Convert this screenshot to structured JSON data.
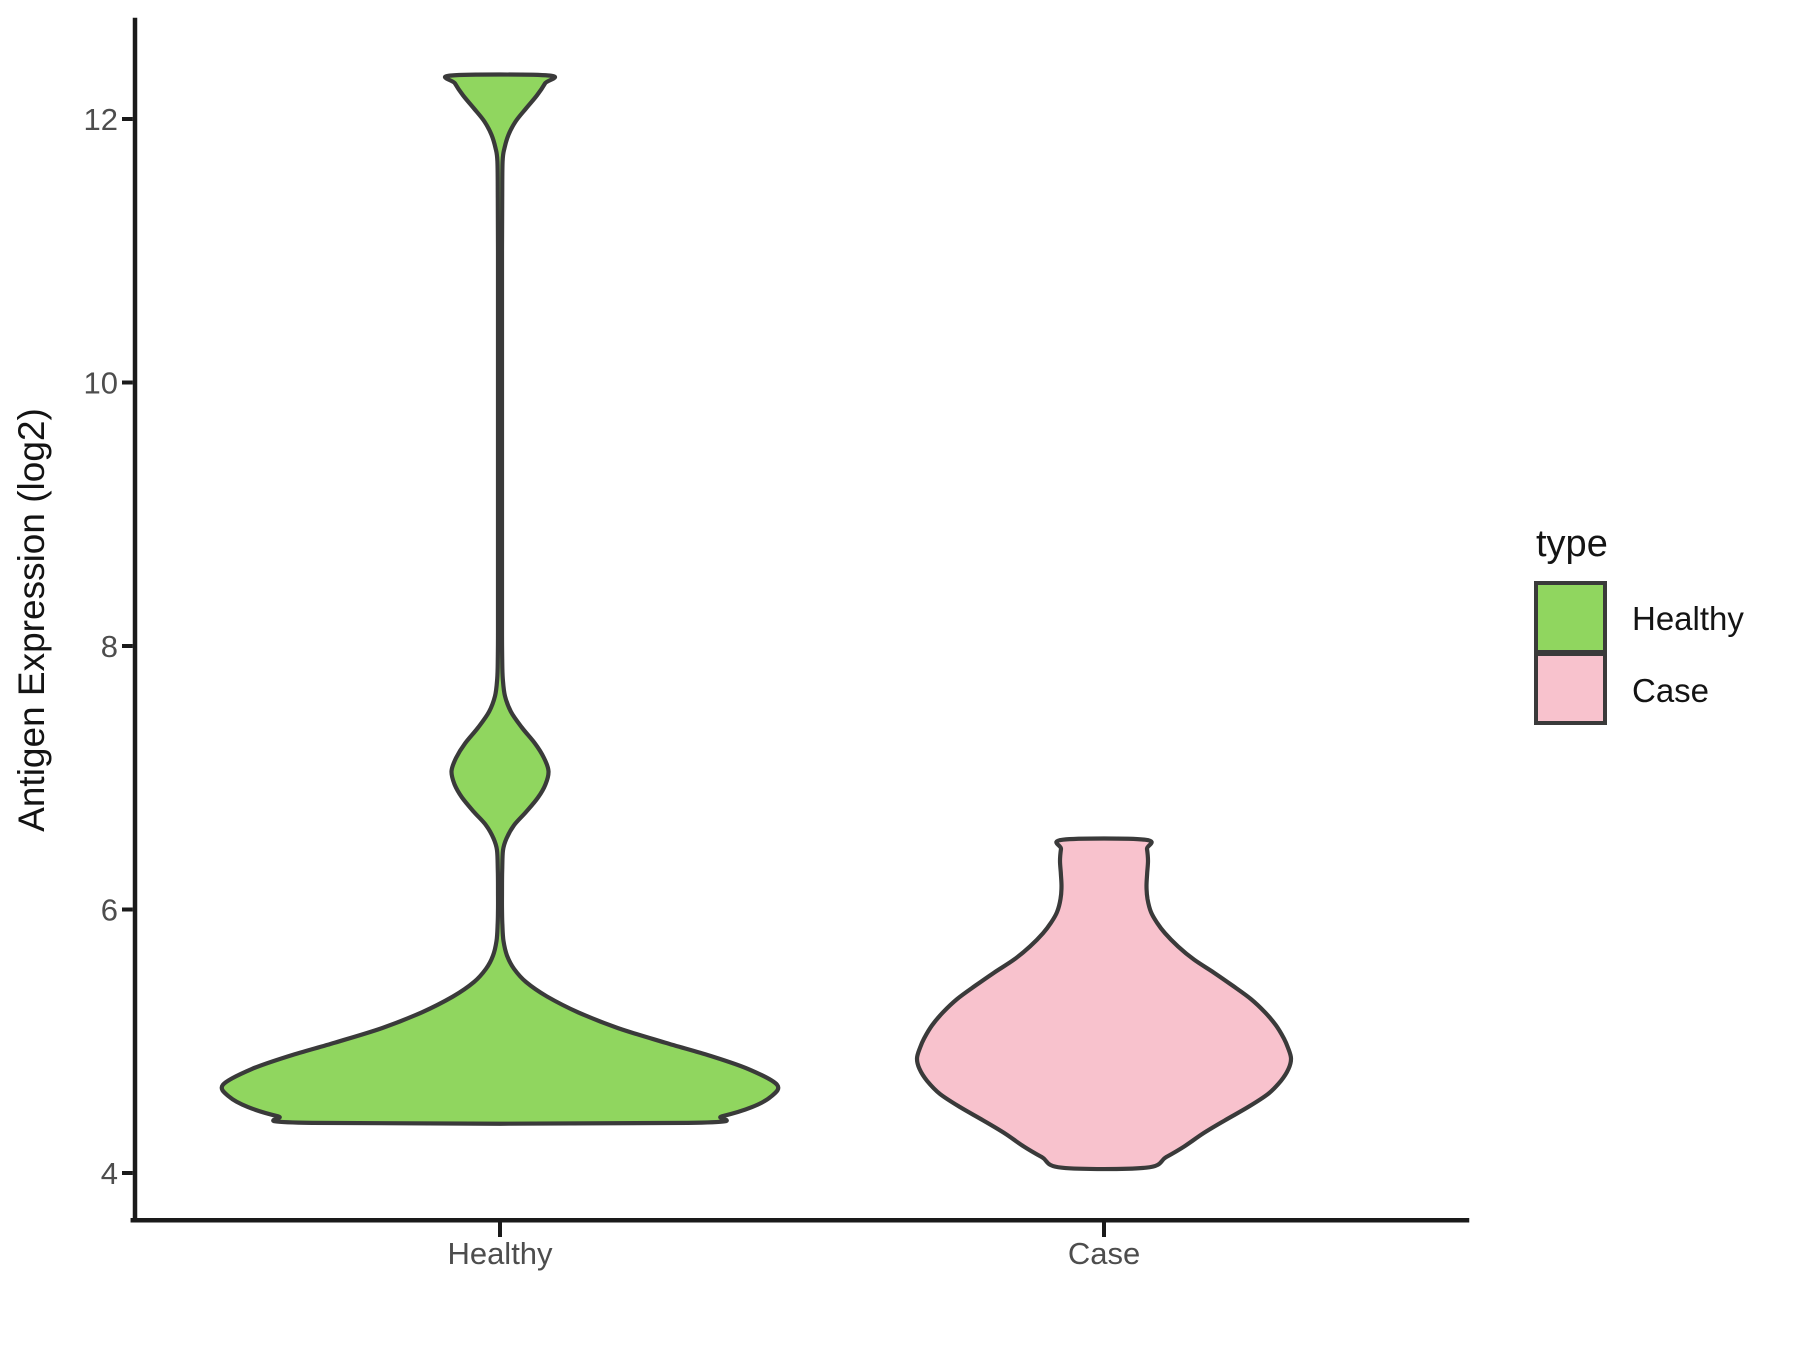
{
  "chart_data": {
    "type": "violin",
    "title": "",
    "xlabel": "",
    "ylabel": "Antigen Expression (log2)",
    "categories": [
      "Healthy",
      "Case"
    ],
    "y_axis": {
      "ticks": [
        "12",
        "10",
        "8",
        "6",
        "4"
      ],
      "tick_values": [
        12,
        10,
        8,
        6,
        4
      ],
      "range_shown": [
        3.6,
        12.75
      ],
      "grid": "off"
    },
    "x_axis": {
      "tick_labels": [
        "Healthy",
        "Case"
      ]
    },
    "legend": {
      "title": "type",
      "position": "right",
      "entries": [
        {
          "label": "Healthy",
          "color": "#90D65F"
        },
        {
          "label": "Case",
          "color": "#F8C2CD"
        }
      ]
    },
    "colors": {
      "outline": "#3A3A3A",
      "axis": "#1A1A1A",
      "tick_label": "#4D4D4D",
      "text": "#141414",
      "background": "#FFFFFF"
    },
    "series": [
      {
        "name": "Healthy",
        "fill": "#90D65F",
        "summary": {
          "bulk_range": [
            4.38,
            5.72
          ],
          "widest_at": 4.67,
          "mid_bulge_center": 7.05,
          "mid_bulge_range": [
            6.55,
            7.6
          ],
          "top_spike_range": [
            11.7,
            12.33
          ]
        },
        "outline_profile": [
          [
            12.33,
            48.5
          ],
          [
            12.27,
            45
          ],
          [
            12.18,
            37
          ],
          [
            12.08,
            26
          ],
          [
            11.98,
            15.5
          ],
          [
            11.88,
            8.5
          ],
          [
            11.78,
            4.5
          ],
          [
            11.68,
            2.6
          ],
          [
            11.4,
            2.2
          ],
          [
            11.0,
            2.0
          ],
          [
            10.5,
            2.0
          ],
          [
            10.0,
            2.0
          ],
          [
            9.5,
            2.0
          ],
          [
            9.0,
            2.0
          ],
          [
            8.5,
            2.0
          ],
          [
            8.1,
            2.0
          ],
          [
            7.9,
            2.2
          ],
          [
            7.75,
            2.8
          ],
          [
            7.62,
            5
          ],
          [
            7.5,
            11
          ],
          [
            7.38,
            22
          ],
          [
            7.26,
            35
          ],
          [
            7.15,
            44
          ],
          [
            7.05,
            48.5
          ],
          [
            6.95,
            45.5
          ],
          [
            6.85,
            38
          ],
          [
            6.74,
            26
          ],
          [
            6.64,
            14
          ],
          [
            6.54,
            6.5
          ],
          [
            6.45,
            3
          ],
          [
            6.3,
            2.2
          ],
          [
            6.15,
            2.0
          ],
          [
            6.0,
            2.0
          ],
          [
            5.88,
            2.4
          ],
          [
            5.76,
            3.5
          ],
          [
            5.65,
            7
          ],
          [
            5.55,
            14
          ],
          [
            5.45,
            26
          ],
          [
            5.34,
            47
          ],
          [
            5.22,
            78
          ],
          [
            5.1,
            118
          ],
          [
            4.99,
            165
          ],
          [
            4.89,
            210
          ],
          [
            4.79,
            248
          ],
          [
            4.67,
            277
          ],
          [
            4.58,
            271
          ],
          [
            4.5,
            252
          ],
          [
            4.43,
            222
          ],
          [
            4.38,
            188
          ]
        ]
      },
      {
        "name": "Case",
        "fill": "#F8C2CD",
        "summary": {
          "range": [
            4.04,
            6.53
          ],
          "widest_at": 4.87,
          "neck_waist_at": 6.2
        },
        "outline_profile": [
          [
            6.53,
            41
          ],
          [
            6.46,
            43
          ],
          [
            6.37,
            44
          ],
          [
            6.28,
            43.2
          ],
          [
            6.18,
            42.5
          ],
          [
            6.08,
            43.5
          ],
          [
            5.98,
            47
          ],
          [
            5.9,
            53
          ],
          [
            5.82,
            61
          ],
          [
            5.72,
            74
          ],
          [
            5.62,
            90
          ],
          [
            5.52,
            110
          ],
          [
            5.42,
            129
          ],
          [
            5.32,
            147
          ],
          [
            5.22,
            161
          ],
          [
            5.12,
            172
          ],
          [
            5.02,
            180
          ],
          [
            4.95,
            184
          ],
          [
            4.87,
            187
          ],
          [
            4.79,
            184.5
          ],
          [
            4.7,
            177
          ],
          [
            4.6,
            164
          ],
          [
            4.5,
            144
          ],
          [
            4.4,
            121
          ],
          [
            4.3,
            99
          ],
          [
            4.2,
            80
          ],
          [
            4.12,
            62
          ],
          [
            4.04,
            42
          ]
        ]
      }
    ]
  }
}
